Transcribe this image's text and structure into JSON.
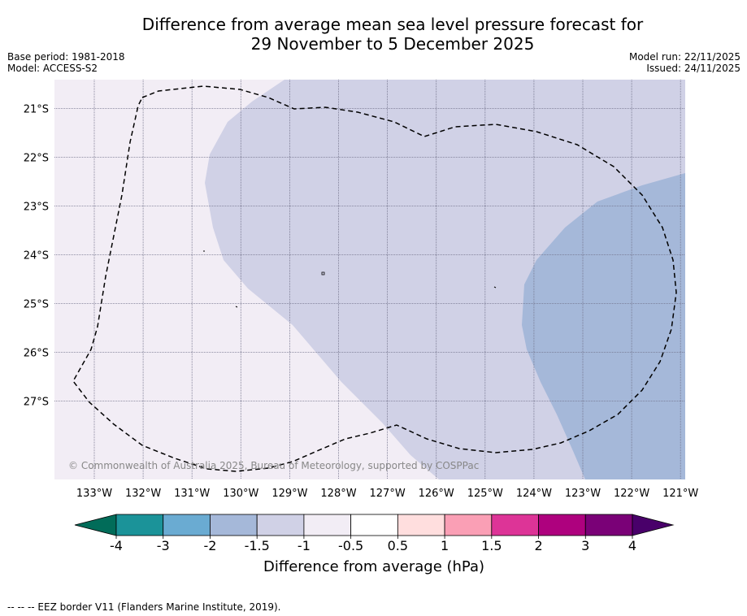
{
  "title_line1": "Difference from average mean sea level pressure forecast for",
  "title_line2": "29 November to 5 December 2025",
  "base_period": "Base period: 1981-2018",
  "model": "Model: ACCESS-S2",
  "model_run": "Model run: 22/11/2025",
  "issued": "Issued: 24/11/2025",
  "copyright": "© Commonwealth of Australia 2025, Bureau of Meteorology, supported by COSPPac",
  "footer_note": "--  --  -- EEZ border V11 (Flanders Marine Institute, 2019).",
  "colorbar": {
    "label": "Difference from average (hPa)",
    "tick_labels": [
      "-4",
      "-3",
      "-2",
      "-1.5",
      "-1",
      "-0.5",
      "0.5",
      "1",
      "1.5",
      "2",
      "3",
      "4"
    ],
    "colors": [
      "#1b9399",
      "#6aabd2",
      "#a5b8d9",
      "#d0d1e6",
      "#f2edf5",
      "#ffffff",
      "#ffdede",
      "#fa9fb5",
      "#dd3497",
      "#ae017e",
      "#7a0177"
    ],
    "under_color": "#016c59",
    "over_color": "#49006a"
  },
  "map": {
    "lat_labels": [
      "21°S",
      "22°S",
      "23°S",
      "24°S",
      "25°S",
      "26°S",
      "27°S"
    ],
    "lon_labels": [
      "133°W",
      "132°W",
      "131°W",
      "130°W",
      "129°W",
      "128°W",
      "127°W",
      "126°W",
      "125°W",
      "124°W",
      "123°W",
      "122°W",
      "121°W"
    ],
    "fill_colors": {
      "weak": "#f2edf5",
      "moderate": "#d0d1e6",
      "strong": "#a5b8d9"
    },
    "border_color": "#000000",
    "grid_color": "#6f6f88"
  }
}
